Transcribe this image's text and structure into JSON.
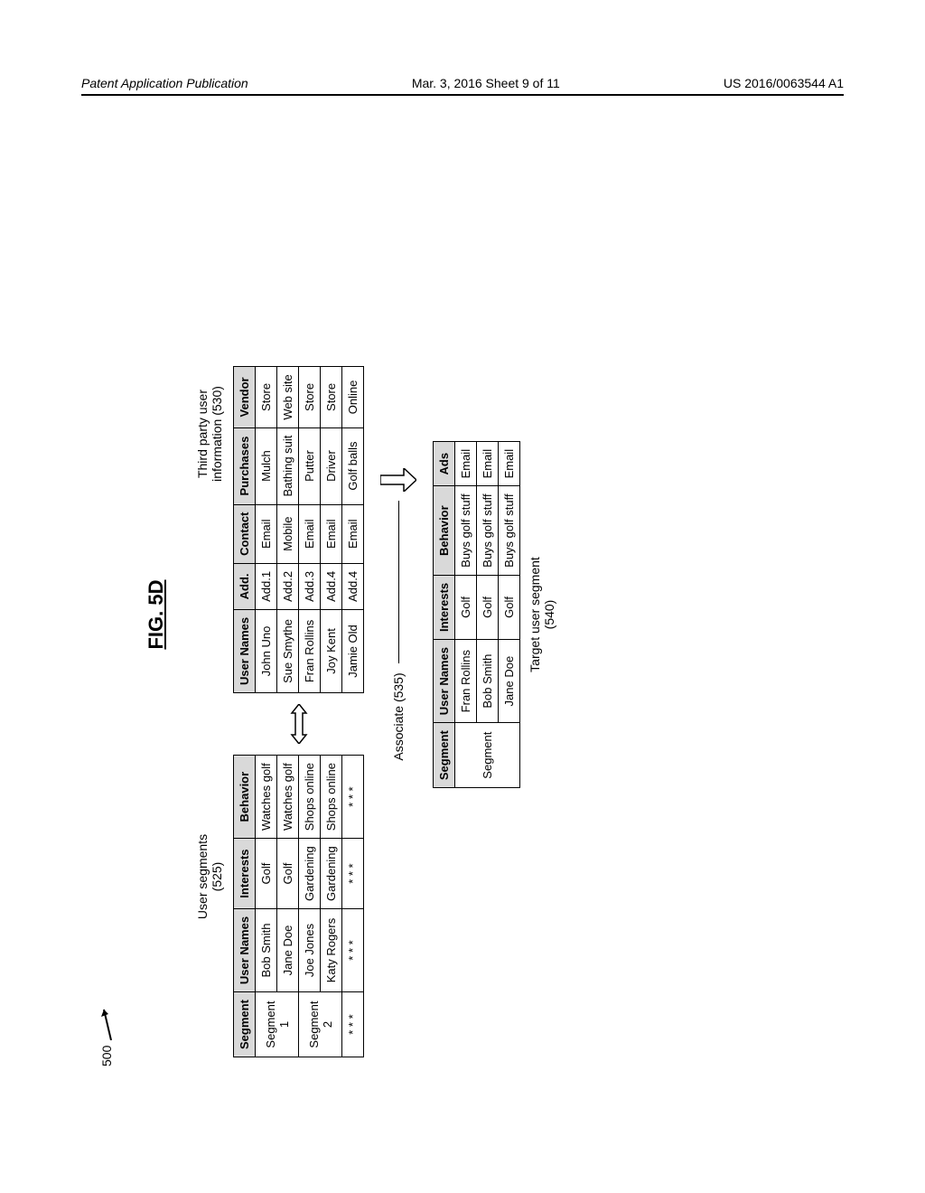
{
  "header": {
    "left": "Patent Application Publication",
    "center": "Mar. 3, 2016  Sheet 9 of 11",
    "right": "US 2016/0063544 A1"
  },
  "figure": {
    "ref": "500",
    "title": "FIG. 5D",
    "user_segments_label": "User segments\n(525)",
    "third_party_label": "Third party user\ninformation (530)",
    "associate_label": "Associate (535)",
    "target_label": "Target user segment\n(540)"
  },
  "user_segments_table": {
    "columns": [
      "Segment",
      "User Names",
      "Interests",
      "Behavior"
    ],
    "rows": [
      [
        "Segment\n1",
        "Bob Smith",
        "Golf",
        "Watches golf"
      ],
      [
        "",
        "Jane Doe",
        "Golf",
        "Watches golf"
      ],
      [
        "Segment\n2",
        "Joe Jones",
        "Gardening",
        "Shops online"
      ],
      [
        "",
        "Katy Rogers",
        "Gardening",
        "Shops online"
      ],
      [
        "* * *",
        "* * *",
        "* * *",
        "* * *"
      ]
    ]
  },
  "third_party_table": {
    "columns": [
      "User Names",
      "Add.",
      "Contact",
      "Purchases",
      "Vendor"
    ],
    "rows": [
      [
        "John Uno",
        "Add.1",
        "Email",
        "Mulch",
        "Store"
      ],
      [
        "Sue Smythe",
        "Add.2",
        "Mobile",
        "Bathing suit",
        "Web site"
      ],
      [
        "Fran Rollins",
        "Add.3",
        "Email",
        "Putter",
        "Store"
      ],
      [
        "Joy Kent",
        "Add.4",
        "Email",
        "Driver",
        "Store"
      ],
      [
        "Jamie Old",
        "Add.4",
        "Email",
        "Golf balls",
        "Online"
      ]
    ]
  },
  "target_table": {
    "columns": [
      "Segment",
      "User Names",
      "Interests",
      "Behavior",
      "Ads"
    ],
    "rows": [
      [
        "Segment",
        "Fran Rollins",
        "Golf",
        "Buys golf stuff",
        "Email"
      ],
      [
        "",
        "Bob Smith",
        "Golf",
        "Buys golf stuff",
        "Email"
      ],
      [
        "",
        "Jane Doe",
        "Golf",
        "Buys golf stuff",
        "Email"
      ]
    ]
  }
}
